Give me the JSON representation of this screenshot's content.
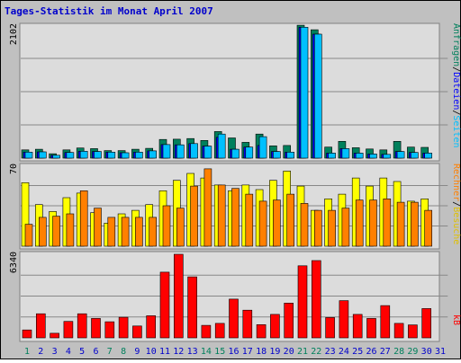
{
  "title": "Tages-Statistik im Monat April 2007",
  "colors": {
    "background": "#c0c0c0",
    "panel": "#dcdcdc",
    "title": "#0000cc",
    "grid": "#888888",
    "hits": "#00805c",
    "files": "#0000ff",
    "pages": "#00c0ff",
    "visits": "#ffff00",
    "sites": "#ff8000",
    "kbytes": "#ff0000",
    "weekend_day": "#00805c",
    "week_day": "#0000cc"
  },
  "chart_data": {
    "type": "bar",
    "title": "Tages-Statistik im Monat April 2007",
    "categories": [
      "1",
      "2",
      "3",
      "4",
      "5",
      "6",
      "7",
      "8",
      "9",
      "10",
      "11",
      "12",
      "13",
      "14",
      "15",
      "16",
      "17",
      "18",
      "19",
      "20",
      "21",
      "22",
      "23",
      "24",
      "25",
      "26",
      "27",
      "28",
      "29",
      "30",
      "31"
    ],
    "weekend_days": [
      "1",
      "7",
      "8",
      "14",
      "15",
      "21",
      "22",
      "28",
      "29"
    ],
    "panels": [
      {
        "max_label": "2102",
        "ylim": [
          0,
          2102
        ],
        "legend": [
          "Anfragen",
          "Dateien",
          "Seiten"
        ],
        "legend_separator": "/",
        "series": [
          {
            "name": "Anfragen",
            "values": [
              130,
              140,
              70,
              130,
              160,
              150,
              120,
              120,
              140,
              155,
              295,
              300,
              310,
              280,
              420,
              320,
              250,
              380,
              195,
              200,
              2100,
              2030,
              175,
              265,
              165,
              145,
              130,
              265,
              175,
              170,
              0
            ]
          },
          {
            "name": "Dateien",
            "values": [
              95,
              100,
              45,
              90,
              110,
              105,
              95,
              85,
              95,
              115,
              215,
              210,
              230,
              190,
              330,
              140,
              175,
              200,
              105,
              95,
              2070,
              1960,
              80,
              150,
              80,
              65,
              60,
              105,
              90,
              80,
              0
            ]
          },
          {
            "name": "Seiten",
            "values": [
              95,
              100,
              45,
              90,
              110,
              105,
              95,
              85,
              95,
              115,
              215,
              210,
              230,
              190,
              380,
              140,
              175,
              340,
              105,
              95,
              2070,
              1960,
              80,
              150,
              80,
              65,
              60,
              105,
              90,
              80,
              0
            ]
          }
        ]
      },
      {
        "max_label": "70",
        "ylim": [
          0,
          70
        ],
        "legend": [
          "Rechner",
          "Besuche"
        ],
        "legend_separator": "/",
        "series": [
          {
            "name": "Besuche",
            "values": [
              55,
              36,
              30,
              42,
              46,
              29,
              20,
              28,
              31,
              36,
              48,
              57,
              63,
              59,
              53,
              48,
              53,
              49,
              57,
              65,
              52,
              31,
              41,
              45,
              59,
              52,
              59,
              56,
              39,
              41,
              0
            ]
          },
          {
            "name": "Rechner",
            "values": [
              19,
              25,
              26,
              28,
              48,
              33,
              25,
              25,
              25,
              25,
              35,
              33,
              52,
              67,
              53,
              50,
              45,
              39,
              40,
              45,
              37,
              31,
              31,
              33,
              40,
              40,
              41,
              38,
              38,
              31,
              0
            ]
          }
        ]
      },
      {
        "max_label": "6340",
        "ylim": [
          0,
          6340
        ],
        "legend": [
          "kB"
        ],
        "legend_separator": "",
        "series": [
          {
            "name": "kB",
            "values": [
              600,
              1830,
              350,
              1250,
              1830,
              1470,
              1220,
              1560,
              900,
              1680,
              4980,
              6340,
              4630,
              950,
              1100,
              2940,
              2100,
              1000,
              1780,
              2640,
              5470,
              5860,
              1540,
              2820,
              1780,
              1470,
              2450,
              1100,
              980,
              2220,
              0
            ]
          }
        ]
      }
    ]
  }
}
